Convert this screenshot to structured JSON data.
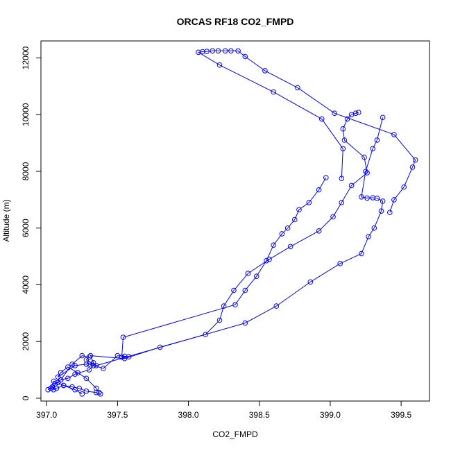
{
  "chart_data": {
    "type": "scatter",
    "title": "ORCAS RF18 CO2_FMPD",
    "xlabel": "CO2_FMPD",
    "ylabel": "Altitude (m)",
    "xlim": [
      396.96,
      399.7
    ],
    "ylim": [
      -100,
      12600
    ],
    "xticks": [
      397.0,
      397.5,
      398.0,
      398.5,
      399.0,
      399.5
    ],
    "xtick_labels": [
      "397.0",
      "397.5",
      "398.0",
      "398.5",
      "399.0",
      "399.5"
    ],
    "yticks": [
      0,
      2000,
      4000,
      6000,
      8000,
      10000,
      12000
    ],
    "ytick_labels": [
      "0",
      "2000",
      "4000",
      "6000",
      "8000",
      "10000",
      "12000"
    ],
    "grid": false,
    "color": "#0000ff",
    "series": [
      {
        "marker": "open-circle",
        "x": [
          397.25,
          397.2,
          397.12,
          397.08,
          397.05,
          397.03,
          397.01,
          397.04,
          397.1,
          397.15,
          397.2,
          397.3,
          397.33,
          397.3,
          397.4,
          397.5,
          397.55,
          397.58,
          397.53,
          397.54,
          398.33,
          398.4,
          398.48,
          398.55,
          398.6,
          398.66,
          398.7,
          398.75,
          398.78,
          398.85,
          398.92,
          398.97
        ],
        "y": [
          150,
          300,
          450,
          550,
          600,
          350,
          300,
          400,
          650,
          700,
          850,
          1000,
          1150,
          1200,
          1050,
          1500,
          1480,
          1460,
          1450,
          2150,
          3300,
          3800,
          4300,
          4850,
          5400,
          5800,
          6000,
          6300,
          6650,
          6900,
          7350,
          7780
        ]
      },
      {
        "marker": "open-circle",
        "x": [
          397.37,
          397.35,
          397.28,
          397.22,
          397.15,
          397.1,
          397.08,
          397.2,
          397.28,
          397.33,
          397.31,
          397.55,
          397.8,
          398.12,
          398.22,
          398.25,
          398.32,
          398.42,
          398.57,
          398.72,
          398.92,
          399.02,
          399.08,
          399.15,
          399.26,
          399.24,
          399.1,
          399.09,
          399.12,
          399.15,
          399.18,
          399.2
        ],
        "y": [
          200,
          350,
          700,
          900,
          1100,
          900,
          750,
          1150,
          1200,
          1250,
          1500,
          1400,
          1800,
          2250,
          2750,
          3250,
          3800,
          4400,
          4900,
          5350,
          5900,
          6400,
          6900,
          7500,
          7950,
          8500,
          9100,
          9500,
          9850,
          10000,
          10050,
          10080
        ]
      },
      {
        "marker": "open-circle",
        "x": [
          397.38,
          397.35,
          397.28,
          397.23,
          397.18,
          397.12,
          397.07,
          397.05,
          397.06,
          397.1,
          397.18,
          397.25,
          397.3,
          397.28,
          397.35,
          398.4,
          398.62,
          398.86,
          399.07,
          399.22,
          399.27,
          399.31,
          399.36,
          399.37,
          399.33,
          399.3,
          399.26,
          399.22,
          399.25,
          399.3,
          399.33,
          399.37
        ],
        "y": [
          150,
          200,
          250,
          350,
          400,
          450,
          350,
          300,
          500,
          650,
          1200,
          1500,
          1450,
          1350,
          1150,
          2650,
          3250,
          4100,
          4750,
          5100,
          5700,
          6000,
          6600,
          6950,
          7050,
          7070,
          7060,
          7100,
          8000,
          8800,
          9100,
          9900
        ]
      },
      {
        "marker": "open-circle",
        "x": [
          399.42,
          399.45,
          399.52,
          399.58,
          399.6,
          399.45,
          399.03,
          398.77,
          398.54,
          398.4,
          398.35,
          398.3,
          398.26,
          398.21,
          398.17,
          398.13,
          398.1,
          398.07,
          398.22,
          398.6,
          398.94,
          399.09,
          399.08
        ],
        "y": [
          6550,
          7000,
          7450,
          8150,
          8400,
          9300,
          10050,
          10950,
          11550,
          12050,
          12250,
          12250,
          12250,
          12250,
          12250,
          12230,
          12220,
          12200,
          11750,
          10800,
          9850,
          8800,
          7750
        ]
      }
    ]
  }
}
